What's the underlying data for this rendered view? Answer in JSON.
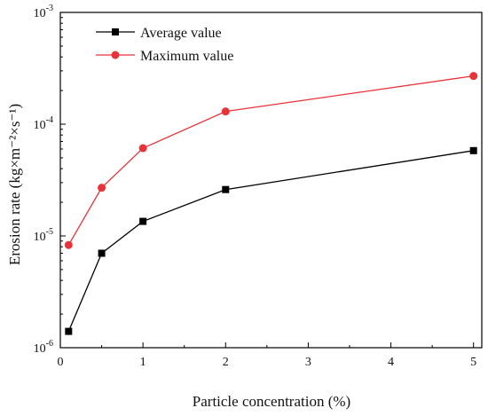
{
  "chart_data": {
    "type": "line",
    "xlabel": "Particle concentration (%)",
    "ylabel": "Erosion rate (kg×m⁻²×s⁻¹)",
    "xlim": [
      0,
      5.1
    ],
    "ylim": [
      1e-06,
      0.001
    ],
    "y_scale": "log",
    "x_ticks": [
      0,
      1,
      2,
      3,
      4,
      5
    ],
    "x_tick_labels": [
      "0",
      "1",
      "2",
      "3",
      "4",
      "5"
    ],
    "y_ticks": [
      {
        "value": 1e-06,
        "base": "10",
        "exp": "-6"
      },
      {
        "value": 1e-05,
        "base": "10",
        "exp": "-5"
      },
      {
        "value": 0.0001,
        "base": "10",
        "exp": "-4"
      },
      {
        "value": 0.001,
        "base": "10",
        "exp": "-3"
      }
    ],
    "x": [
      0.1,
      0.5,
      1,
      2,
      5
    ],
    "series": [
      {
        "name": "Average value",
        "marker": "square",
        "color": "#000000",
        "values": [
          1.4e-06,
          7e-06,
          1.35e-05,
          2.6e-05,
          5.8e-05
        ]
      },
      {
        "name": "Maximum value",
        "marker": "circle",
        "color": "#e8333a",
        "values": [
          8.3e-06,
          2.7e-05,
          6.1e-05,
          0.00013,
          0.00027
        ]
      }
    ],
    "legend_position": "top-left",
    "grid": false
  }
}
